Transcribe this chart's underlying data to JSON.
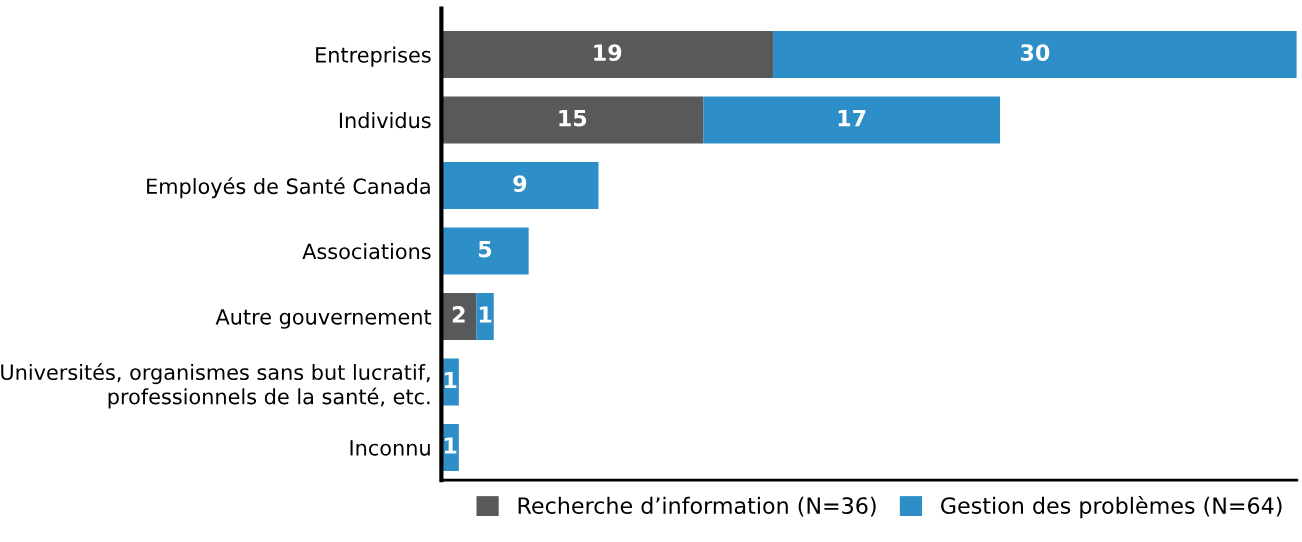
{
  "chart_data": {
    "type": "bar",
    "orientation": "horizontal",
    "stacked": true,
    "data_labels": true,
    "legend": "bottom right",
    "grid": false,
    "tick_labels": "y",
    "categories": [
      "Entreprises",
      "Individus",
      "Employés de Santé Canada",
      "Associations",
      "Autre gouvernement",
      "Universités, organismes sans but lucratif,\nprofessionnels de la santé, etc.",
      "Inconnu"
    ],
    "series": [
      {
        "name": "Recherche d’information (N=36)",
        "color": "#58595b",
        "values": [
          19,
          15,
          null,
          null,
          2,
          null,
          null
        ]
      },
      {
        "name": "Gestion des problèmes (N=64)",
        "color": "#2e8fc8",
        "values": [
          30,
          17,
          9,
          5,
          1,
          1,
          1
        ]
      }
    ]
  }
}
